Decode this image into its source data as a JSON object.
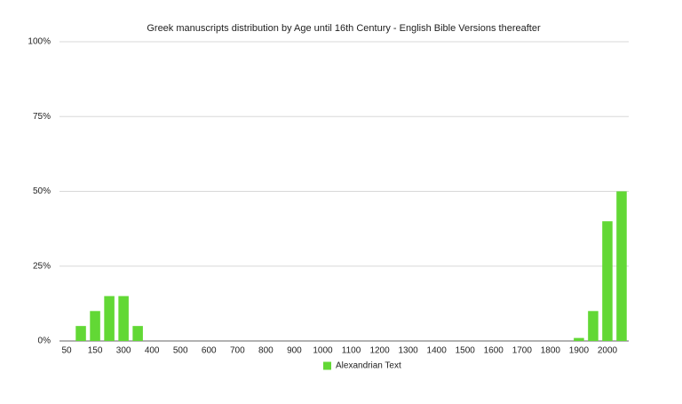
{
  "chart_data": {
    "type": "bar",
    "title": "Greek manuscripts distribution by Age until 16th Century - English Bible Versions thereafter",
    "categories": [
      "50",
      null,
      "150",
      null,
      "300",
      null,
      "400",
      null,
      "500",
      null,
      "600",
      null,
      "700",
      null,
      "800",
      null,
      "900",
      null,
      "1000",
      null,
      "1100",
      null,
      "1200",
      null,
      "1300",
      null,
      "1400",
      null,
      "1500",
      null,
      "1600",
      null,
      "1700",
      null,
      "1800",
      null,
      "1900",
      null,
      "2000",
      null
    ],
    "series": [
      {
        "name": "Alexandrian Text",
        "color": "#62d835",
        "values": [
          0,
          5,
          10,
          15,
          15,
          5,
          0,
          0,
          0,
          0,
          0,
          0,
          0,
          0,
          0,
          0,
          0,
          0,
          0,
          0,
          0,
          0,
          0,
          0,
          0,
          0,
          0,
          0,
          0,
          0,
          0,
          0,
          0,
          0,
          0,
          0,
          1,
          10,
          40,
          50
        ]
      }
    ],
    "ylim": [
      0,
      100
    ],
    "yticks": [
      {
        "value": 0,
        "label": "0%"
      },
      {
        "value": 25,
        "label": "25%"
      },
      {
        "value": 50,
        "label": "50%"
      },
      {
        "value": 75,
        "label": "75%"
      },
      {
        "value": 100,
        "label": "100%"
      }
    ],
    "grid": true,
    "legend": "bottom"
  }
}
